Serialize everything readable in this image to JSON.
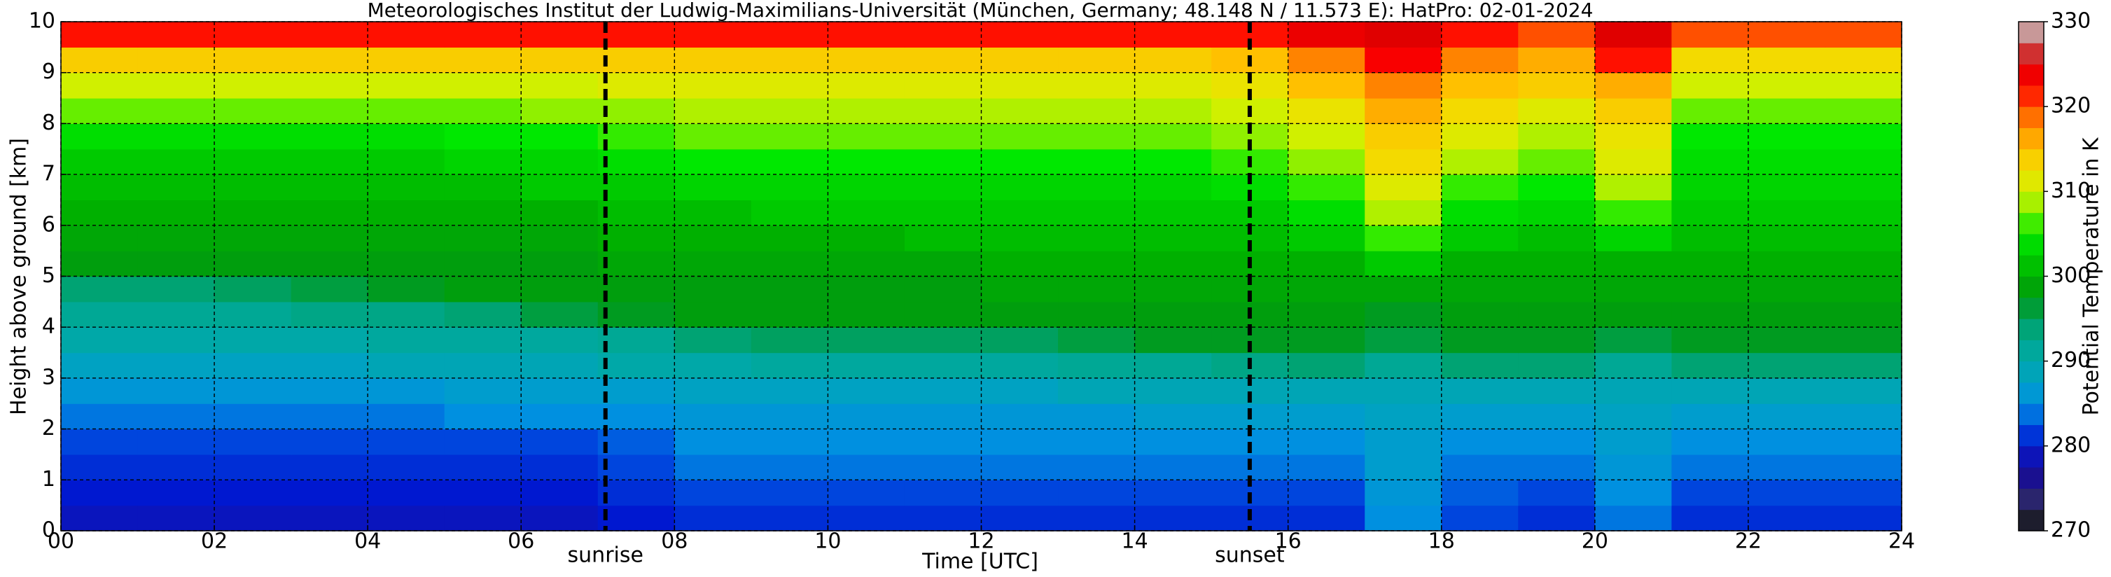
{
  "chart_data": {
    "type": "heatmap",
    "title": "Meteorologisches Institut der Ludwig-Maximilians-Universität (München, Germany; 48.148 N / 11.573 E):    HatPro: 02-01-2024",
    "x_label": "Time [UTC]",
    "y_label": "Height above ground [km]",
    "colorbar_label": "Potential Temperature in K",
    "x": [
      0,
      1,
      2,
      3,
      4,
      5,
      6,
      7,
      8,
      9,
      10,
      11,
      12,
      13,
      14,
      15,
      16,
      17,
      18,
      19,
      20,
      21,
      22,
      23,
      24
    ],
    "y": [
      0,
      0.5,
      1,
      1.5,
      2,
      2.5,
      3,
      3.5,
      4,
      4.5,
      5,
      5.5,
      6,
      6.5,
      7,
      7.5,
      8,
      8.5,
      9,
      9.5,
      10
    ],
    "values": [
      [
        279,
        279,
        279,
        279,
        279,
        279,
        279,
        280,
        281,
        281,
        281,
        281,
        281,
        281,
        281,
        281,
        281,
        285,
        282,
        281,
        284,
        281,
        281,
        281
      ],
      [
        280,
        280,
        280,
        280,
        280,
        280,
        280,
        281,
        282,
        282,
        282,
        282,
        282,
        282,
        282,
        282,
        282,
        286,
        283,
        282,
        285,
        282,
        282,
        282
      ],
      [
        281,
        281,
        281,
        281,
        281,
        281,
        281,
        282,
        284,
        284,
        284,
        284,
        284,
        284,
        284,
        284,
        284,
        287,
        284,
        284,
        286,
        284,
        284,
        284
      ],
      [
        282,
        282,
        282,
        282,
        282,
        282,
        282,
        283,
        285,
        285,
        285,
        285,
        285,
        285,
        285,
        285,
        285,
        287,
        285,
        285,
        287,
        285,
        285,
        285
      ],
      [
        284,
        284,
        284,
        284,
        284,
        285,
        285,
        285,
        286,
        286,
        286,
        286,
        286,
        286,
        287,
        287,
        287,
        288,
        287,
        287,
        288,
        287,
        287,
        287
      ],
      [
        286,
        286,
        286,
        286,
        286,
        287,
        287,
        287,
        288,
        288,
        288,
        288,
        288,
        289,
        289,
        289,
        289,
        289,
        289,
        289,
        289,
        289,
        289,
        289
      ],
      [
        288,
        288,
        288,
        288,
        289,
        289,
        289,
        290,
        290,
        291,
        291,
        291,
        291,
        292,
        292,
        293,
        294,
        292,
        294,
        294,
        292,
        294,
        294,
        294
      ],
      [
        290,
        290,
        290,
        290,
        291,
        291,
        291,
        292,
        294,
        295,
        295,
        295,
        295,
        296,
        297,
        297,
        297,
        296,
        297,
        297,
        296,
        297,
        297,
        297
      ],
      [
        292,
        292,
        292,
        293,
        293,
        294,
        296,
        297,
        298,
        298,
        298,
        298,
        298,
        298,
        298,
        298,
        298,
        297,
        298,
        298,
        298,
        298,
        298,
        298
      ],
      [
        294,
        294,
        295,
        296,
        297,
        298,
        298,
        298,
        298,
        298,
        298,
        298,
        299,
        299,
        299,
        299,
        299,
        299,
        299,
        299,
        299,
        299,
        299,
        299
      ],
      [
        298,
        298,
        298,
        298,
        298,
        298,
        298,
        299,
        299,
        299,
        299,
        299,
        300,
        300,
        300,
        300,
        300,
        302,
        300,
        300,
        300,
        300,
        300,
        300
      ],
      [
        299,
        299,
        299,
        299,
        299,
        299,
        299,
        300,
        300,
        300,
        300,
        301,
        301,
        301,
        301,
        301,
        302,
        306,
        302,
        301,
        303,
        301,
        301,
        301
      ],
      [
        300,
        300,
        300,
        300,
        300,
        300,
        300,
        301,
        301,
        302,
        302,
        302,
        302,
        302,
        302,
        302,
        304,
        309,
        304,
        303,
        306,
        302,
        302,
        302
      ],
      [
        301,
        301,
        301,
        301,
        301,
        301,
        302,
        302,
        303,
        303,
        303,
        303,
        303,
        303,
        303,
        304,
        306,
        311,
        306,
        305,
        309,
        303,
        303,
        303
      ],
      [
        302,
        302,
        302,
        302,
        302,
        303,
        303,
        304,
        305,
        305,
        305,
        305,
        305,
        305,
        305,
        306,
        308,
        313,
        309,
        307,
        311,
        304,
        304,
        304
      ],
      [
        304,
        304,
        304,
        304,
        304,
        305,
        305,
        306,
        307,
        307,
        307,
        307,
        307,
        307,
        307,
        308,
        310,
        314,
        311,
        309,
        312,
        305,
        305,
        305
      ],
      [
        307,
        307,
        307,
        307,
        307,
        307,
        308,
        308,
        309,
        309,
        309,
        309,
        309,
        309,
        309,
        310,
        312,
        316,
        313,
        311,
        314,
        307,
        307,
        307
      ],
      [
        310,
        310,
        310,
        310,
        310,
        310,
        310,
        311,
        311,
        311,
        311,
        311,
        311,
        311,
        311,
        312,
        315,
        318,
        315,
        314,
        316,
        310,
        310,
        310
      ],
      [
        314,
        314,
        314,
        314,
        314,
        314,
        314,
        314,
        314,
        314,
        314,
        314,
        314,
        314,
        314,
        315,
        318,
        323,
        318,
        316,
        322,
        313,
        313,
        313
      ],
      [
        322,
        322,
        322,
        322,
        322,
        322,
        322,
        322,
        322,
        322,
        322,
        322,
        322,
        322,
        322,
        322,
        324,
        325,
        322,
        320,
        325,
        320,
        320,
        320
      ]
    ],
    "xlim": [
      0,
      24
    ],
    "ylim": [
      0,
      10
    ],
    "xticks": [
      {
        "value": 0,
        "label": "00"
      },
      {
        "value": 2,
        "label": "02"
      },
      {
        "value": 4,
        "label": "04"
      },
      {
        "value": 6,
        "label": "06"
      },
      {
        "value": 8,
        "label": "08"
      },
      10,
      12,
      14,
      16,
      18,
      20,
      22,
      24
    ],
    "yticks": [
      0,
      1,
      2,
      3,
      4,
      5,
      6,
      7,
      8,
      9,
      10
    ],
    "zlim": [
      270,
      330
    ],
    "zticks": [
      270,
      280,
      290,
      300,
      310,
      320,
      330
    ],
    "grid": true,
    "colorscale": [
      [
        270,
        "#000000"
      ],
      [
        272.5,
        "#3a3a5a"
      ],
      [
        275,
        "#1a1080"
      ],
      [
        277.5,
        "#1a10a0"
      ],
      [
        280,
        "#0018d0"
      ],
      [
        282.5,
        "#0050e0"
      ],
      [
        285,
        "#0090e0"
      ],
      [
        287.5,
        "#00a0c8"
      ],
      [
        290,
        "#00a8a8"
      ],
      [
        292.5,
        "#00a890"
      ],
      [
        295,
        "#00a060"
      ],
      [
        297.5,
        "#009a10"
      ],
      [
        300,
        "#00b000"
      ],
      [
        302.5,
        "#00d000"
      ],
      [
        305,
        "#00e800"
      ],
      [
        307.5,
        "#80f000"
      ],
      [
        310,
        "#d0f000"
      ],
      [
        312.5,
        "#f0e000"
      ],
      [
        315,
        "#ffc000"
      ],
      [
        317.5,
        "#ff9000"
      ],
      [
        320,
        "#ff5000"
      ],
      [
        322.5,
        "#ff0000"
      ],
      [
        325,
        "#e00000"
      ],
      [
        327.5,
        "#c06060"
      ],
      [
        330,
        "#d0d0d0"
      ]
    ],
    "annotations": [
      {
        "text": "sunrise",
        "x": 7.1
      },
      {
        "text": "sunset",
        "x": 15.5
      }
    ]
  }
}
